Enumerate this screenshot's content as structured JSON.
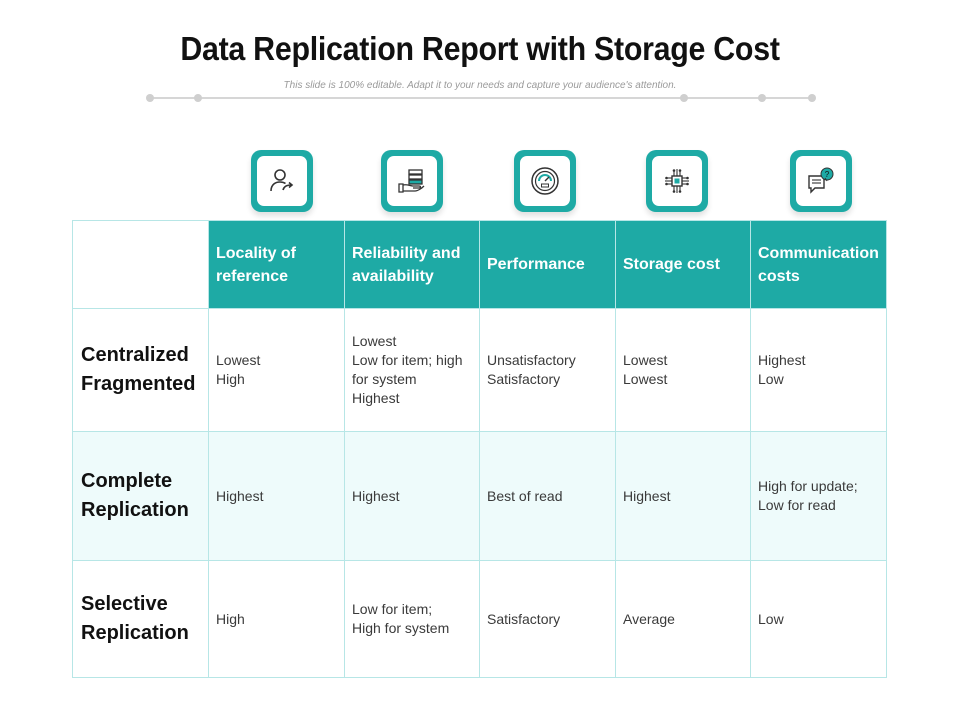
{
  "title": "Data Replication Report with Storage Cost",
  "subtitle": "This slide is 100% editable. Adapt it to your needs and capture your audience's attention.",
  "colors": {
    "accent": "#1eaaa5",
    "row_shade": "#eefbfb",
    "border": "#b7e6e6"
  },
  "icons": [
    "user-share-icon",
    "hand-server-icon",
    "speedometer-icon",
    "circuit-chip-icon",
    "chat-question-icon"
  ],
  "table": {
    "headers": [
      [
        "Locality of",
        "reference"
      ],
      [
        "Reliability and",
        "availability"
      ],
      [
        "Performance"
      ],
      [
        "Storage cost"
      ],
      [
        "Communication",
        "costs"
      ]
    ],
    "rows": [
      {
        "label": [
          "Centralized",
          "Fragmented"
        ],
        "cells": [
          [
            "Lowest",
            "High"
          ],
          [
            "Lowest",
            "Low for item; high",
            "for system",
            "Highest"
          ],
          [
            "Unsatisfactory",
            "Satisfactory"
          ],
          [
            "Lowest",
            "Lowest"
          ],
          [
            "Highest",
            "Low"
          ]
        ]
      },
      {
        "label": [
          "Complete",
          "Replication"
        ],
        "cells": [
          [
            "Highest"
          ],
          [
            "Highest"
          ],
          [
            "Best of read"
          ],
          [
            "Highest"
          ],
          [
            "High for update;",
            "Low for read"
          ]
        ]
      },
      {
        "label": [
          "Selective",
          "Replication"
        ],
        "cells": [
          [
            "High"
          ],
          [
            "Low for item;",
            "High for system"
          ],
          [
            "Satisfactory"
          ],
          [
            "Average"
          ],
          [
            "Low"
          ]
        ]
      }
    ]
  }
}
